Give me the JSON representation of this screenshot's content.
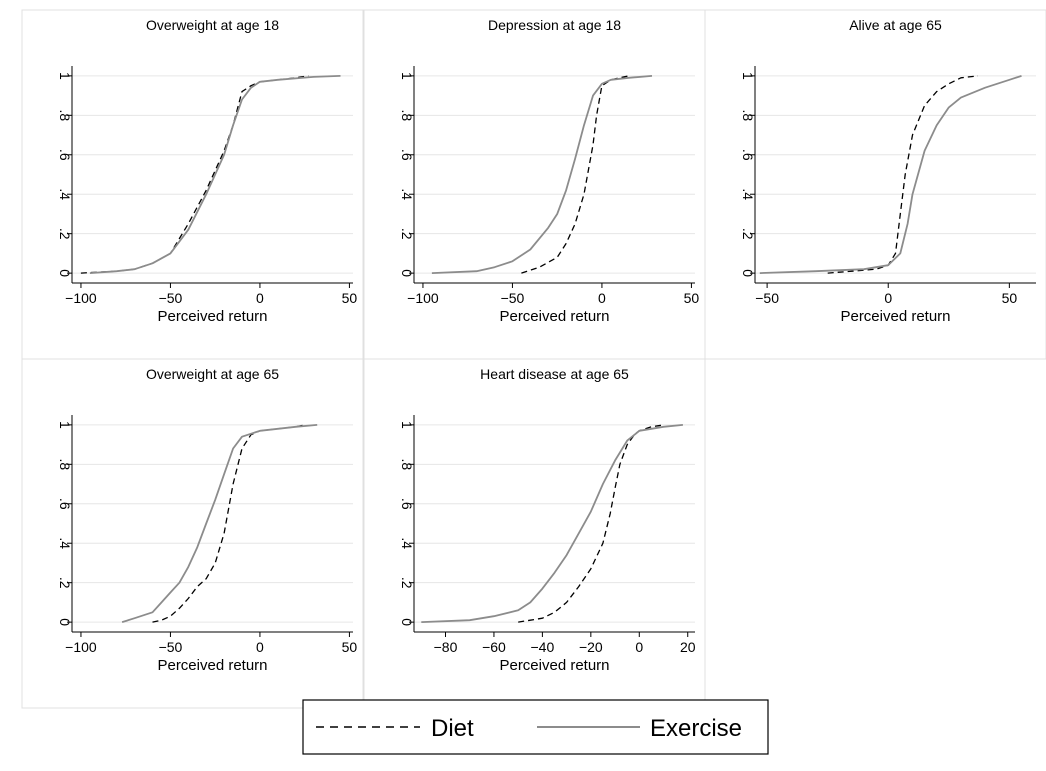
{
  "legend": {
    "items": [
      {
        "label": "Diet"
      },
      {
        "label": "Exercise"
      }
    ]
  },
  "colors": {
    "diet": "#000000",
    "exercise": "#8c8c8c",
    "grid": "#e6e6e6",
    "frame": "#e0e0e0"
  },
  "chart_data": [
    {
      "type": "line",
      "title": "Overweight at age 18",
      "xlabel": "Perceived return",
      "ylabel": "",
      "xlim": [
        -105,
        52
      ],
      "ylim": [
        -0.05,
        1.05
      ],
      "xticks": [
        -100,
        -50,
        0,
        50
      ],
      "yticks": [
        0,
        0.2,
        0.4,
        0.6,
        0.8,
        1
      ],
      "yticklabels": [
        "0",
        ".2",
        ".4",
        ".6",
        ".8",
        "1"
      ],
      "series": [
        {
          "name": "Diet",
          "style": "dashed",
          "points": [
            [
              -100,
              0
            ],
            [
              -80,
              0.01
            ],
            [
              -70,
              0.02
            ],
            [
              -60,
              0.05
            ],
            [
              -50,
              0.1
            ],
            [
              -40,
              0.25
            ],
            [
              -30,
              0.42
            ],
            [
              -20,
              0.62
            ],
            [
              -15,
              0.75
            ],
            [
              -10,
              0.92
            ],
            [
              -5,
              0.95
            ],
            [
              0,
              0.97
            ],
            [
              10,
              0.98
            ],
            [
              20,
              0.99
            ],
            [
              27,
              1
            ]
          ]
        },
        {
          "name": "Exercise",
          "style": "solid",
          "points": [
            [
              -95,
              0
            ],
            [
              -80,
              0.01
            ],
            [
              -70,
              0.02
            ],
            [
              -60,
              0.05
            ],
            [
              -50,
              0.1
            ],
            [
              -40,
              0.22
            ],
            [
              -30,
              0.4
            ],
            [
              -20,
              0.6
            ],
            [
              -15,
              0.75
            ],
            [
              -10,
              0.88
            ],
            [
              -5,
              0.94
            ],
            [
              0,
              0.97
            ],
            [
              10,
              0.98
            ],
            [
              30,
              0.995
            ],
            [
              45,
              1
            ]
          ]
        }
      ]
    },
    {
      "type": "line",
      "title": "Depression at age 18",
      "xlabel": "Perceived return",
      "ylabel": "",
      "xlim": [
        -105,
        52
      ],
      "ylim": [
        -0.05,
        1.05
      ],
      "xticks": [
        -100,
        -50,
        0,
        50
      ],
      "yticks": [
        0,
        0.2,
        0.4,
        0.6,
        0.8,
        1
      ],
      "yticklabels": [
        "0",
        ".2",
        ".4",
        ".6",
        ".8",
        "1"
      ],
      "series": [
        {
          "name": "Diet",
          "style": "dashed",
          "points": [
            [
              -45,
              0
            ],
            [
              -35,
              0.03
            ],
            [
              -25,
              0.08
            ],
            [
              -20,
              0.15
            ],
            [
              -15,
              0.25
            ],
            [
              -10,
              0.4
            ],
            [
              -7,
              0.55
            ],
            [
              -5,
              0.65
            ],
            [
              -3,
              0.8
            ],
            [
              -1,
              0.9
            ],
            [
              0,
              0.95
            ],
            [
              5,
              0.98
            ],
            [
              10,
              0.99
            ],
            [
              15,
              1
            ]
          ]
        },
        {
          "name": "Exercise",
          "style": "solid",
          "points": [
            [
              -95,
              0
            ],
            [
              -70,
              0.01
            ],
            [
              -60,
              0.03
            ],
            [
              -50,
              0.06
            ],
            [
              -40,
              0.12
            ],
            [
              -30,
              0.23
            ],
            [
              -25,
              0.3
            ],
            [
              -20,
              0.42
            ],
            [
              -15,
              0.58
            ],
            [
              -10,
              0.75
            ],
            [
              -5,
              0.9
            ],
            [
              0,
              0.96
            ],
            [
              5,
              0.98
            ],
            [
              15,
              0.99
            ],
            [
              28,
              1
            ]
          ]
        }
      ]
    },
    {
      "type": "line",
      "title": "Alive at age 65",
      "xlabel": "Perceived return",
      "ylabel": "",
      "xlim": [
        -55,
        61
      ],
      "ylim": [
        -0.05,
        1.05
      ],
      "xticks": [
        -50,
        0,
        50
      ],
      "yticks": [
        0,
        0.2,
        0.4,
        0.6,
        0.8,
        1
      ],
      "yticklabels": [
        "0",
        ".2",
        ".4",
        ".6",
        ".8",
        "1"
      ],
      "series": [
        {
          "name": "Diet",
          "style": "dashed",
          "points": [
            [
              -25,
              0
            ],
            [
              -15,
              0.01
            ],
            [
              -5,
              0.02
            ],
            [
              0,
              0.04
            ],
            [
              3,
              0.1
            ],
            [
              5,
              0.3
            ],
            [
              7,
              0.5
            ],
            [
              10,
              0.7
            ],
            [
              15,
              0.85
            ],
            [
              20,
              0.92
            ],
            [
              25,
              0.96
            ],
            [
              30,
              0.99
            ],
            [
              37,
              1
            ]
          ]
        },
        {
          "name": "Exercise",
          "style": "solid",
          "points": [
            [
              -53,
              0
            ],
            [
              -30,
              0.01
            ],
            [
              -10,
              0.02
            ],
            [
              0,
              0.04
            ],
            [
              5,
              0.1
            ],
            [
              8,
              0.25
            ],
            [
              10,
              0.4
            ],
            [
              15,
              0.62
            ],
            [
              20,
              0.75
            ],
            [
              25,
              0.84
            ],
            [
              30,
              0.89
            ],
            [
              40,
              0.94
            ],
            [
              50,
              0.98
            ],
            [
              55,
              1
            ]
          ]
        }
      ]
    },
    {
      "type": "line",
      "title": "Overweight at age 65",
      "xlabel": "Perceived return",
      "ylabel": "",
      "xlim": [
        -105,
        52
      ],
      "ylim": [
        -0.05,
        1.05
      ],
      "xticks": [
        -100,
        -50,
        0,
        50
      ],
      "yticks": [
        0,
        0.2,
        0.4,
        0.6,
        0.8,
        1
      ],
      "yticklabels": [
        "0",
        ".2",
        ".4",
        ".6",
        ".8",
        "1"
      ],
      "series": [
        {
          "name": "Diet",
          "style": "dashed",
          "points": [
            [
              -60,
              0
            ],
            [
              -55,
              0.01
            ],
            [
              -50,
              0.03
            ],
            [
              -45,
              0.07
            ],
            [
              -40,
              0.12
            ],
            [
              -35,
              0.18
            ],
            [
              -30,
              0.22
            ],
            [
              -25,
              0.3
            ],
            [
              -20,
              0.45
            ],
            [
              -18,
              0.55
            ],
            [
              -15,
              0.7
            ],
            [
              -10,
              0.88
            ],
            [
              -5,
              0.95
            ],
            [
              0,
              0.97
            ],
            [
              10,
              0.98
            ],
            [
              20,
              0.99
            ],
            [
              25,
              1
            ]
          ]
        },
        {
          "name": "Exercise",
          "style": "solid",
          "points": [
            [
              -77,
              0
            ],
            [
              -70,
              0.02
            ],
            [
              -60,
              0.05
            ],
            [
              -55,
              0.1
            ],
            [
              -50,
              0.15
            ],
            [
              -45,
              0.2
            ],
            [
              -40,
              0.28
            ],
            [
              -35,
              0.38
            ],
            [
              -30,
              0.5
            ],
            [
              -25,
              0.62
            ],
            [
              -20,
              0.75
            ],
            [
              -15,
              0.88
            ],
            [
              -10,
              0.94
            ],
            [
              0,
              0.97
            ],
            [
              10,
              0.98
            ],
            [
              20,
              0.99
            ],
            [
              32,
              1
            ]
          ]
        }
      ]
    },
    {
      "type": "line",
      "title": "Heart disease at age 65",
      "xlabel": "Perceived return",
      "ylabel": "",
      "xlim": [
        -93,
        23
      ],
      "ylim": [
        -0.05,
        1.05
      ],
      "xticks": [
        -80,
        -60,
        -40,
        -20,
        0,
        20
      ],
      "yticks": [
        0,
        0.2,
        0.4,
        0.6,
        0.8,
        1
      ],
      "yticklabels": [
        "0",
        ".2",
        ".4",
        ".6",
        ".8",
        "1"
      ],
      "series": [
        {
          "name": "Diet",
          "style": "dashed",
          "points": [
            [
              -50,
              0
            ],
            [
              -45,
              0.01
            ],
            [
              -40,
              0.02
            ],
            [
              -35,
              0.05
            ],
            [
              -30,
              0.1
            ],
            [
              -25,
              0.18
            ],
            [
              -20,
              0.27
            ],
            [
              -15,
              0.4
            ],
            [
              -12,
              0.55
            ],
            [
              -10,
              0.68
            ],
            [
              -8,
              0.8
            ],
            [
              -5,
              0.9
            ],
            [
              -2,
              0.95
            ],
            [
              0,
              0.97
            ],
            [
              5,
              0.99
            ],
            [
              10,
              1
            ]
          ]
        },
        {
          "name": "Exercise",
          "style": "solid",
          "points": [
            [
              -90,
              0
            ],
            [
              -70,
              0.01
            ],
            [
              -60,
              0.03
            ],
            [
              -50,
              0.06
            ],
            [
              -45,
              0.1
            ],
            [
              -40,
              0.17
            ],
            [
              -35,
              0.25
            ],
            [
              -30,
              0.34
            ],
            [
              -25,
              0.45
            ],
            [
              -20,
              0.56
            ],
            [
              -15,
              0.7
            ],
            [
              -10,
              0.82
            ],
            [
              -5,
              0.92
            ],
            [
              0,
              0.97
            ],
            [
              5,
              0.98
            ],
            [
              10,
              0.99
            ],
            [
              18,
              1
            ]
          ]
        }
      ]
    }
  ]
}
